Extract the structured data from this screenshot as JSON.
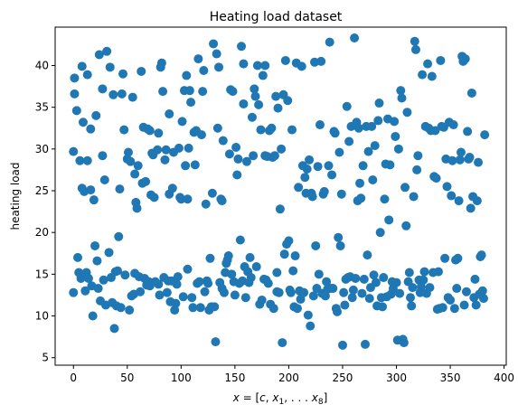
{
  "chart_data": {
    "type": "scatter",
    "title": "Heating load dataset",
    "xlabel_parts": {
      "var": "x",
      "eq": " = [",
      "c": "c",
      "sep1": ", ",
      "x1": "x",
      "sub1": "1",
      "dots": ", . . . ",
      "x8": "x",
      "sub8": "8",
      "close": "]"
    },
    "ylabel": "heating load",
    "xlim": [
      -17,
      402
    ],
    "ylim": [
      4.1,
      44.6
    ],
    "xticks": [
      0,
      50,
      100,
      150,
      200,
      250,
      300,
      350,
      400
    ],
    "yticks": [
      5,
      10,
      15,
      20,
      25,
      30,
      35,
      40
    ],
    "grid": false,
    "marker_color": "#1f77b4",
    "points": [
      [
        0,
        12.8
      ],
      [
        0,
        29.7
      ],
      [
        1,
        36.6
      ],
      [
        1,
        38.5
      ],
      [
        3,
        34.6
      ],
      [
        4,
        17.0
      ],
      [
        5,
        15.2
      ],
      [
        6,
        28.6
      ],
      [
        7,
        14.5
      ],
      [
        7,
        15.0
      ],
      [
        8,
        25.3
      ],
      [
        8,
        39.9
      ],
      [
        9,
        33.2
      ],
      [
        10,
        24.9
      ],
      [
        11,
        13.0
      ],
      [
        12,
        15.2
      ],
      [
        13,
        38.9
      ],
      [
        13,
        28.6
      ],
      [
        14,
        14.5
      ],
      [
        16,
        32.4
      ],
      [
        16,
        25.1
      ],
      [
        17,
        13.6
      ],
      [
        18,
        10.0
      ],
      [
        19,
        23.9
      ],
      [
        20,
        18.4
      ],
      [
        21,
        34.0
      ],
      [
        22,
        16.6
      ],
      [
        23,
        13.3
      ],
      [
        24,
        41.3
      ],
      [
        25,
        11.8
      ],
      [
        27,
        29.2
      ],
      [
        27,
        37.2
      ],
      [
        28,
        14.3
      ],
      [
        29,
        26.3
      ],
      [
        30,
        11.3
      ],
      [
        31,
        41.7
      ],
      [
        33,
        17.6
      ],
      [
        34,
        39.8
      ],
      [
        35,
        14.6
      ],
      [
        36,
        11.6
      ],
      [
        37,
        36.5
      ],
      [
        38,
        8.5
      ],
      [
        39,
        15.3
      ],
      [
        40,
        11.2
      ],
      [
        41,
        15.4
      ],
      [
        42,
        19.5
      ],
      [
        43,
        25.2
      ],
      [
        44,
        11.0
      ],
      [
        45,
        36.6
      ],
      [
        46,
        39.0
      ],
      [
        47,
        32.3
      ],
      [
        48,
        14.9
      ],
      [
        50,
        28.8
      ],
      [
        51,
        29.6
      ],
      [
        52,
        10.7
      ],
      [
        53,
        28.5
      ],
      [
        54,
        12.4
      ],
      [
        55,
        36.2
      ],
      [
        56,
        12.6
      ],
      [
        57,
        15.1
      ],
      [
        57,
        27.0
      ],
      [
        58,
        23.6
      ],
      [
        59,
        22.9
      ],
      [
        60,
        28.0
      ],
      [
        61,
        14.7
      ],
      [
        62,
        12.9
      ],
      [
        63,
        39.3
      ],
      [
        64,
        25.9
      ],
      [
        65,
        32.6
      ],
      [
        66,
        14.5
      ],
      [
        67,
        26.1
      ],
      [
        68,
        13.7
      ],
      [
        69,
        32.4
      ],
      [
        70,
        14.1
      ],
      [
        71,
        13.6
      ],
      [
        71,
        32.2
      ],
      [
        72,
        24.5
      ],
      [
        73,
        29.5
      ],
      [
        74,
        29.3
      ],
      [
        75,
        24.2
      ],
      [
        76,
        14.1
      ],
      [
        78,
        29.9
      ],
      [
        79,
        13.8
      ],
      [
        79,
        31.9
      ],
      [
        80,
        12.5
      ],
      [
        81,
        39.8
      ],
      [
        82,
        40.3
      ],
      [
        83,
        36.9
      ],
      [
        84,
        14.6
      ],
      [
        85,
        28.7
      ],
      [
        86,
        29.9
      ],
      [
        87,
        12.8
      ],
      [
        88,
        14.2
      ],
      [
        89,
        34.2
      ],
      [
        89,
        24.6
      ],
      [
        90,
        11.7
      ],
      [
        91,
        14.2
      ],
      [
        92,
        25.3
      ],
      [
        93,
        29.6
      ],
      [
        94,
        10.7
      ],
      [
        95,
        11.5
      ],
      [
        96,
        13.8
      ],
      [
        97,
        14.7
      ],
      [
        98,
        30.1
      ],
      [
        99,
        24.2
      ],
      [
        100,
        24.0
      ],
      [
        101,
        33.3
      ],
      [
        102,
        12.3
      ],
      [
        103,
        37.0
      ],
      [
        104,
        28.0
      ],
      [
        105,
        38.8
      ],
      [
        106,
        15.6
      ],
      [
        106,
        24.0
      ],
      [
        107,
        30.1
      ],
      [
        108,
        37.0
      ],
      [
        109,
        35.6
      ],
      [
        110,
        12.2
      ],
      [
        111,
        11.0
      ],
      [
        112,
        32.0
      ],
      [
        113,
        28.1
      ],
      [
        114,
        32.2
      ],
      [
        115,
        13.9
      ],
      [
        116,
        40.8
      ],
      [
        117,
        14.1
      ],
      [
        118,
        11.0
      ],
      [
        119,
        31.7
      ],
      [
        120,
        36.9
      ],
      [
        121,
        39.4
      ],
      [
        122,
        12.9
      ],
      [
        123,
        23.4
      ],
      [
        124,
        14.2
      ],
      [
        125,
        13.9
      ],
      [
        126,
        10.7
      ],
      [
        127,
        16.9
      ],
      [
        128,
        11.1
      ],
      [
        129,
        24.7
      ],
      [
        130,
        42.6
      ],
      [
        131,
        11.1
      ],
      [
        132,
        6.9
      ],
      [
        133,
        41.4
      ],
      [
        134,
        32.5
      ],
      [
        135,
        39.8
      ],
      [
        136,
        14.0
      ],
      [
        137,
        24.0
      ],
      [
        138,
        13.3
      ],
      [
        138,
        23.8
      ],
      [
        139,
        31.0
      ],
      [
        140,
        12.8
      ],
      [
        141,
        15.2
      ],
      [
        142,
        16.3
      ],
      [
        143,
        16.7
      ],
      [
        144,
        17.2
      ],
      [
        145,
        29.4
      ],
      [
        146,
        37.1
      ],
      [
        147,
        15.0
      ],
      [
        148,
        36.9
      ],
      [
        149,
        14.1
      ],
      [
        150,
        12.5
      ],
      [
        151,
        30.2
      ],
      [
        152,
        26.9
      ],
      [
        153,
        28.8
      ],
      [
        154,
        13.9
      ],
      [
        155,
        19.1
      ],
      [
        156,
        42.3
      ],
      [
        157,
        14.2
      ],
      [
        158,
        40.2
      ],
      [
        158,
        35.4
      ],
      [
        159,
        15.9
      ],
      [
        160,
        12.2
      ],
      [
        161,
        28.5
      ],
      [
        162,
        15.3
      ],
      [
        163,
        14.0
      ],
      [
        164,
        17.0
      ],
      [
        165,
        14.6
      ],
      [
        166,
        33.8
      ],
      [
        167,
        29.2
      ],
      [
        168,
        37.2
      ],
      [
        169,
        36.3
      ],
      [
        170,
        15.9
      ],
      [
        171,
        40.0
      ],
      [
        172,
        35.3
      ],
      [
        173,
        11.4
      ],
      [
        174,
        32.3
      ],
      [
        175,
        11.9
      ],
      [
        176,
        38.8
      ],
      [
        177,
        14.4
      ],
      [
        178,
        40.0
      ],
      [
        178,
        29.2
      ],
      [
        179,
        14.3
      ],
      [
        180,
        29.1
      ],
      [
        181,
        13.9
      ],
      [
        182,
        32.2
      ],
      [
        183,
        11.4
      ],
      [
        184,
        32.5
      ],
      [
        185,
        29.0
      ],
      [
        186,
        10.9
      ],
      [
        187,
        29.2
      ],
      [
        188,
        36.3
      ],
      [
        189,
        12.9
      ],
      [
        189,
        15.2
      ],
      [
        190,
        34.9
      ],
      [
        191,
        12.8
      ],
      [
        192,
        22.8
      ],
      [
        193,
        30.0
      ],
      [
        194,
        6.8
      ],
      [
        195,
        36.5
      ],
      [
        196,
        17.4
      ],
      [
        197,
        40.6
      ],
      [
        198,
        18.6
      ],
      [
        199,
        35.8
      ],
      [
        200,
        19.0
      ],
      [
        201,
        13.1
      ],
      [
        202,
        12.8
      ],
      [
        203,
        32.3
      ],
      [
        204,
        15.4
      ],
      [
        205,
        11.1
      ],
      [
        206,
        17.2
      ],
      [
        207,
        40.3
      ],
      [
        208,
        10.9
      ],
      [
        209,
        25.4
      ],
      [
        210,
        13.0
      ],
      [
        211,
        12.0
      ],
      [
        212,
        39.9
      ],
      [
        213,
        28.0
      ],
      [
        214,
        12.8
      ],
      [
        215,
        26.6
      ],
      [
        216,
        24.7
      ],
      [
        217,
        27.6
      ],
      [
        218,
        10.1
      ],
      [
        219,
        28.7
      ],
      [
        220,
        8.8
      ],
      [
        221,
        24.7
      ],
      [
        222,
        24.3
      ],
      [
        223,
        12.4
      ],
      [
        224,
        40.4
      ],
      [
        225,
        18.4
      ],
      [
        226,
        13.3
      ],
      [
        227,
        27.9
      ],
      [
        228,
        15.0
      ],
      [
        229,
        32.9
      ],
      [
        230,
        40.5
      ],
      [
        231,
        12.7
      ],
      [
        232,
        24.6
      ],
      [
        233,
        24.9
      ],
      [
        234,
        12.4
      ],
      [
        235,
        14.1
      ],
      [
        236,
        13.2
      ],
      [
        237,
        28.0
      ],
      [
        238,
        42.8
      ],
      [
        239,
        13.3
      ],
      [
        240,
        26.9
      ],
      [
        241,
        13.3
      ],
      [
        242,
        32.1
      ],
      [
        243,
        31.9
      ],
      [
        244,
        10.9
      ],
      [
        245,
        10.5
      ],
      [
        246,
        19.4
      ],
      [
        247,
        29.6
      ],
      [
        248,
        18.4
      ],
      [
        249,
        24.6
      ],
      [
        250,
        6.5
      ],
      [
        251,
        12.8
      ],
      [
        252,
        11.3
      ],
      [
        253,
        14.4
      ],
      [
        254,
        35.1
      ],
      [
        255,
        14.6
      ],
      [
        256,
        30.9
      ],
      [
        257,
        14.7
      ],
      [
        258,
        32.7
      ],
      [
        259,
        12.2
      ],
      [
        260,
        13.1
      ],
      [
        261,
        43.3
      ],
      [
        262,
        14.5
      ],
      [
        263,
        33.2
      ],
      [
        264,
        23.8
      ],
      [
        265,
        32.5
      ],
      [
        266,
        25.9
      ],
      [
        267,
        24.1
      ],
      [
        268,
        12.7
      ],
      [
        269,
        28.0
      ],
      [
        270,
        14.4
      ],
      [
        271,
        6.6
      ],
      [
        272,
        32.7
      ],
      [
        273,
        17.3
      ],
      [
        274,
        29.7
      ],
      [
        275,
        12.1
      ],
      [
        276,
        13.4
      ],
      [
        277,
        32.7
      ],
      [
        278,
        26.3
      ],
      [
        279,
        14.9
      ],
      [
        280,
        30.4
      ],
      [
        281,
        14.0
      ],
      [
        282,
        11.2
      ],
      [
        283,
        33.4
      ],
      [
        284,
        35.5
      ],
      [
        285,
        20.0
      ],
      [
        286,
        12.2
      ],
      [
        287,
        11.1
      ],
      [
        288,
        14.6
      ],
      [
        289,
        24.0
      ],
      [
        290,
        28.2
      ],
      [
        291,
        12.3
      ],
      [
        292,
        33.6
      ],
      [
        293,
        21.5
      ],
      [
        294,
        28.1
      ],
      [
        295,
        12.6
      ],
      [
        296,
        14.1
      ],
      [
        297,
        13.3
      ],
      [
        298,
        33.3
      ],
      [
        299,
        31.5
      ],
      [
        300,
        14.0
      ],
      [
        301,
        7.1
      ],
      [
        302,
        30.0
      ],
      [
        303,
        12.7
      ],
      [
        304,
        37.0
      ],
      [
        305,
        36.1
      ],
      [
        306,
        7.2
      ],
      [
        307,
        6.8
      ],
      [
        308,
        25.4
      ],
      [
        309,
        20.8
      ],
      [
        310,
        34.4
      ],
      [
        311,
        14.1
      ],
      [
        312,
        15.2
      ],
      [
        313,
        12.2
      ],
      [
        314,
        11.2
      ],
      [
        315,
        13.4
      ],
      [
        316,
        24.3
      ],
      [
        317,
        42.9
      ],
      [
        318,
        41.9
      ],
      [
        319,
        27.5
      ],
      [
        320,
        29.2
      ],
      [
        321,
        14.3
      ],
      [
        322,
        12.8
      ],
      [
        323,
        13.5
      ],
      [
        324,
        38.9
      ],
      [
        325,
        14.3
      ],
      [
        326,
        15.3
      ],
      [
        327,
        32.7
      ],
      [
        328,
        12.7
      ],
      [
        329,
        40.2
      ],
      [
        330,
        32.5
      ],
      [
        331,
        13.4
      ],
      [
        332,
        32.2
      ],
      [
        333,
        38.7
      ],
      [
        334,
        15.2
      ],
      [
        335,
        26.7
      ],
      [
        336,
        32.2
      ],
      [
        337,
        26.5
      ],
      [
        338,
        10.8
      ],
      [
        339,
        15.3
      ],
      [
        340,
        10.9
      ],
      [
        341,
        40.6
      ],
      [
        342,
        32.7
      ],
      [
        343,
        11.0
      ],
      [
        344,
        32.6
      ],
      [
        345,
        16.9
      ],
      [
        346,
        28.8
      ],
      [
        347,
        25.5
      ],
      [
        348,
        12.2
      ],
      [
        349,
        33.2
      ],
      [
        350,
        11.9
      ],
      [
        351,
        24.4
      ],
      [
        352,
        28.6
      ],
      [
        353,
        32.9
      ],
      [
        354,
        10.9
      ],
      [
        355,
        16.7
      ],
      [
        356,
        13.3
      ],
      [
        357,
        16.9
      ],
      [
        358,
        23.8
      ],
      [
        359,
        28.7
      ],
      [
        360,
        29.6
      ],
      [
        361,
        41.1
      ],
      [
        362,
        40.5
      ],
      [
        363,
        11.3
      ],
      [
        364,
        40.8
      ],
      [
        365,
        12.9
      ],
      [
        366,
        32.1
      ],
      [
        367,
        28.8
      ],
      [
        368,
        29.0
      ],
      [
        369,
        22.9
      ],
      [
        370,
        36.7
      ],
      [
        371,
        24.3
      ],
      [
        372,
        12.2
      ],
      [
        373,
        14.4
      ],
      [
        374,
        11.3
      ],
      [
        375,
        23.8
      ],
      [
        376,
        28.4
      ],
      [
        377,
        12.6
      ],
      [
        378,
        17.1
      ],
      [
        379,
        17.3
      ],
      [
        380,
        13.0
      ],
      [
        381,
        12.1
      ],
      [
        382,
        31.7
      ]
    ]
  }
}
